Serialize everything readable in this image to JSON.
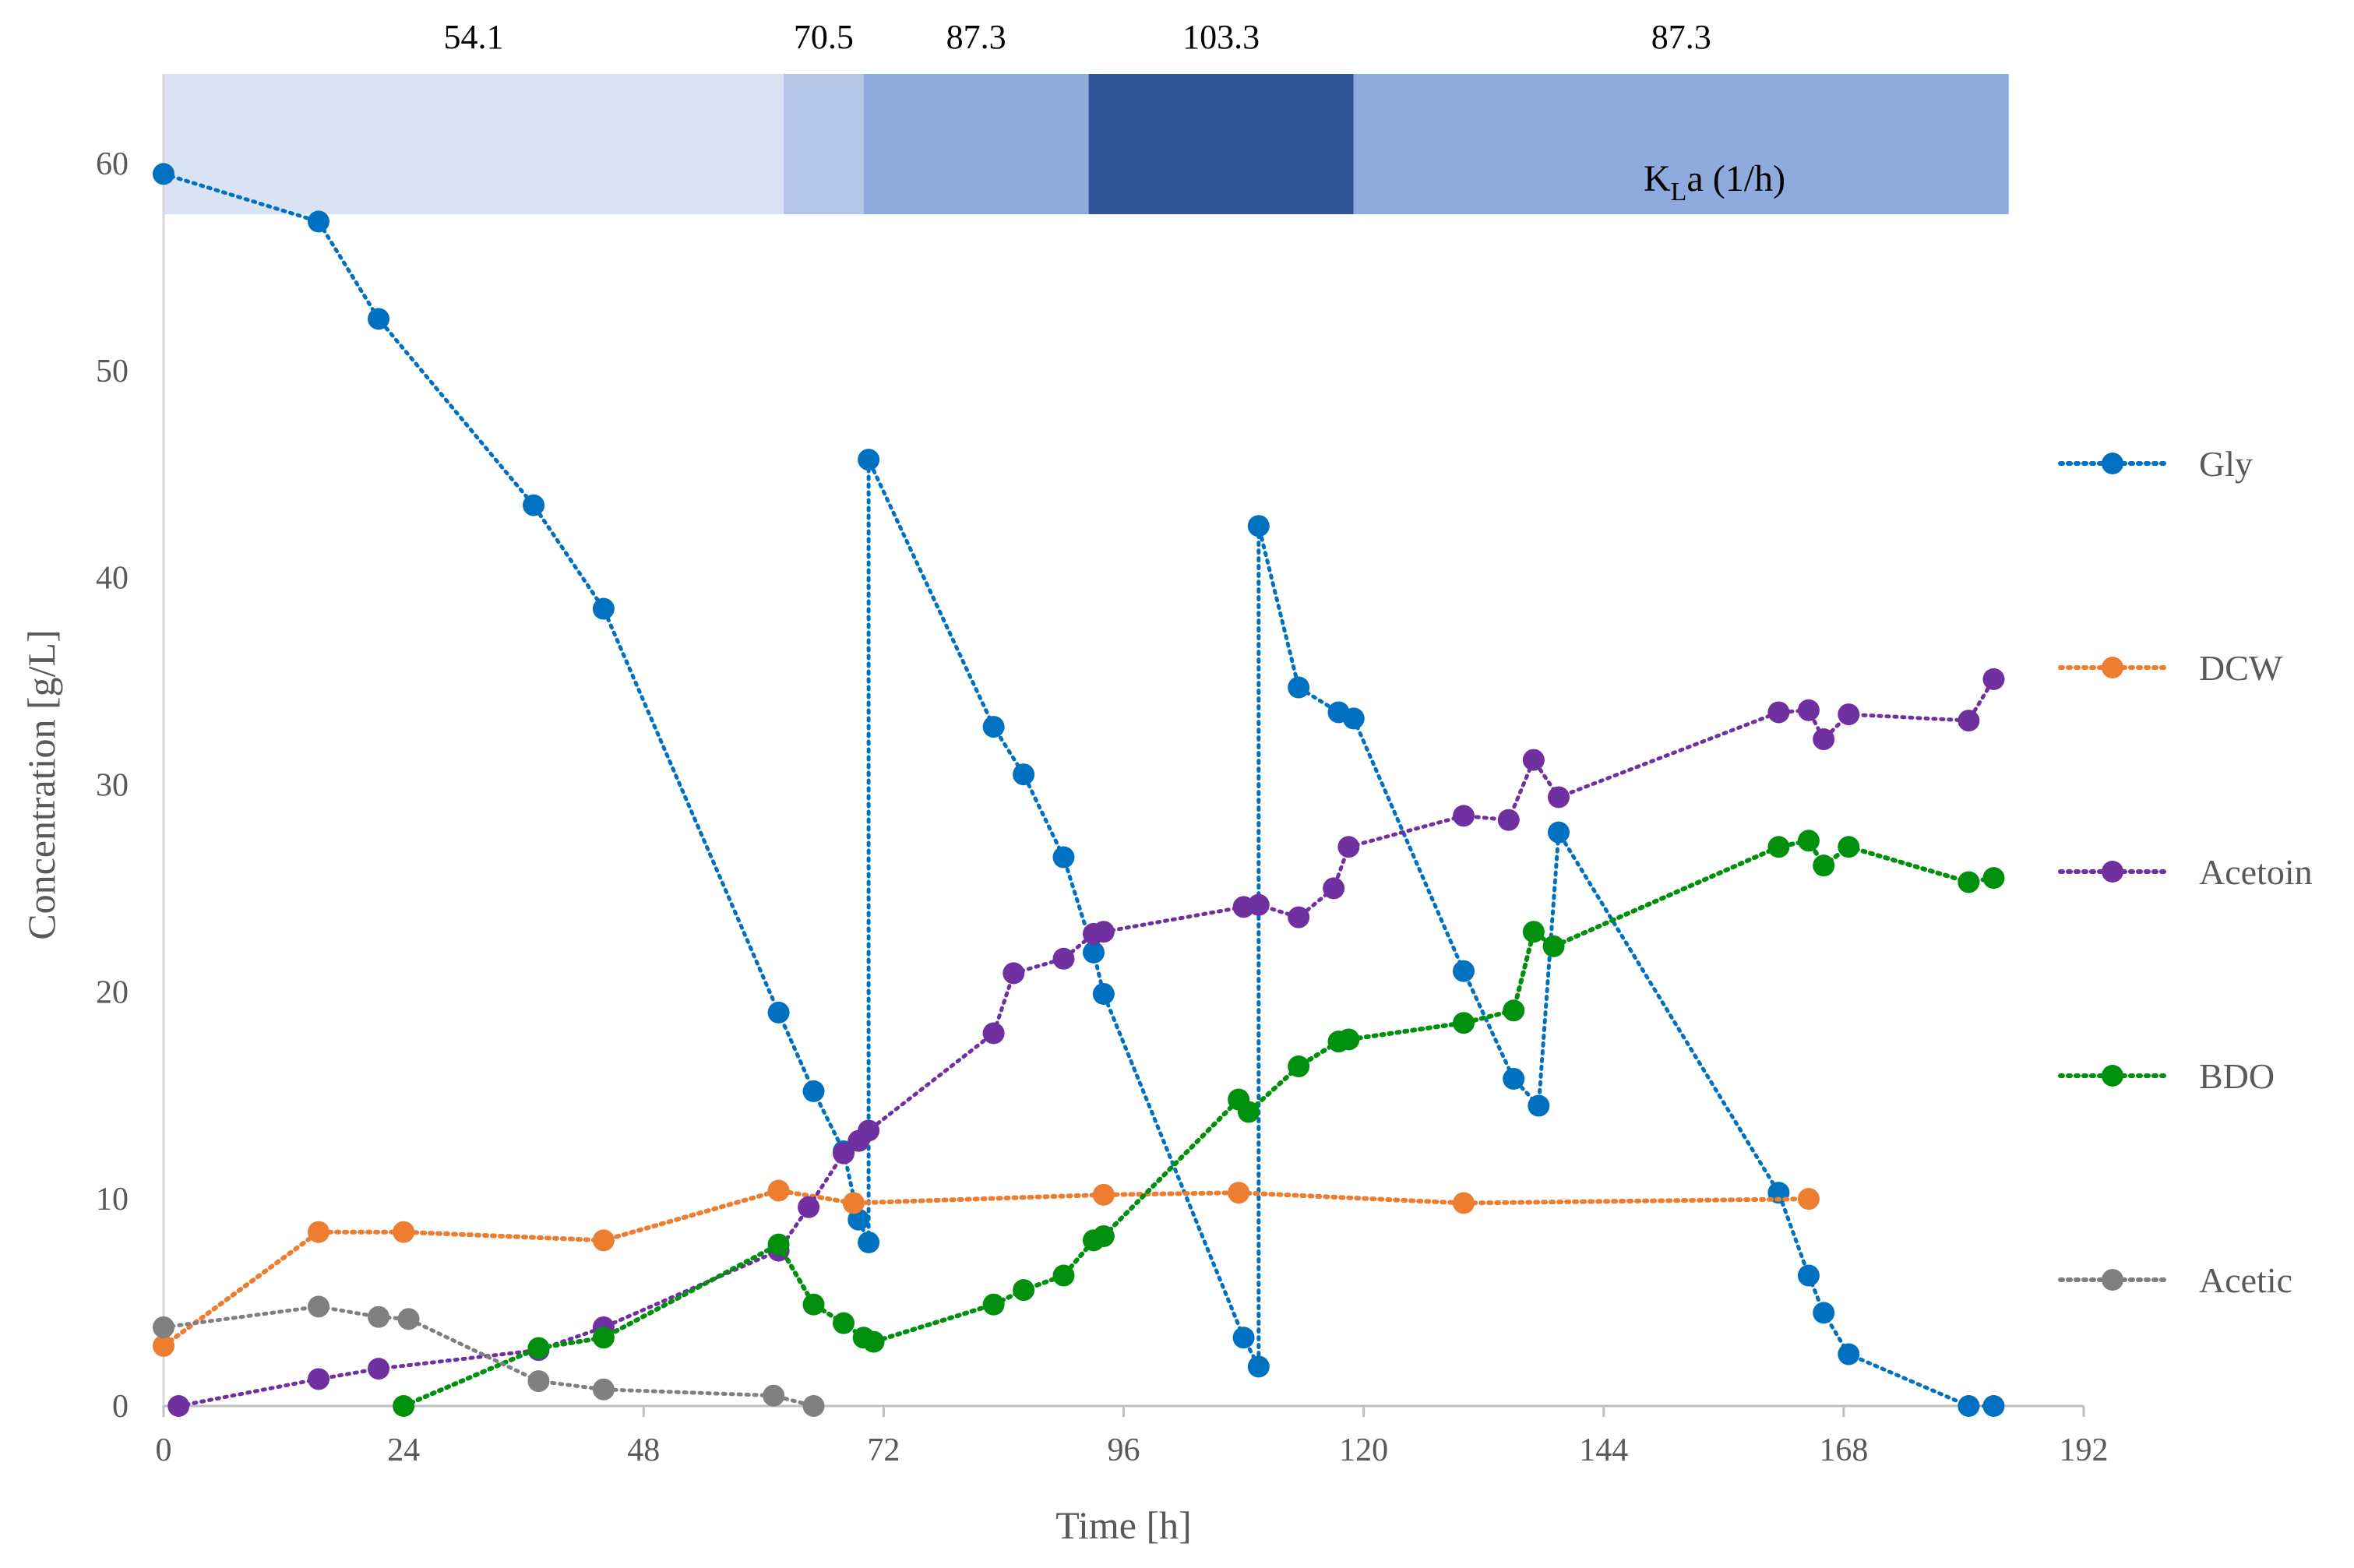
{
  "chart_data": {
    "type": "line",
    "xlabel": "Time [h]",
    "ylabel": "Concentration [g/L]",
    "xlim": [
      0,
      192
    ],
    "ylim": [
      0,
      60
    ],
    "xticks": [
      0,
      24,
      48,
      72,
      96,
      120,
      144,
      168,
      192
    ],
    "yticks": [
      0,
      10,
      20,
      30,
      40,
      50,
      60
    ],
    "grid": false,
    "legend_position": "right",
    "kla_label_prefix": "K",
    "kla_label_sub": "L",
    "kla_label_suffix": "a (1/h)",
    "kla_bands": [
      {
        "start": 0,
        "end": 62,
        "value": "54.1",
        "color": "#dae3f3"
      },
      {
        "start": 62,
        "end": 70,
        "value": "70.5",
        "color": "#b4c7e7"
      },
      {
        "start": 70,
        "end": 92.5,
        "value": "87.3",
        "color": "#8faadc"
      },
      {
        "start": 92.5,
        "end": 119,
        "value": "103.3",
        "color": "#2f5597"
      },
      {
        "start": 119,
        "end": 184.5,
        "value": "87.3",
        "color": "#8faadc"
      }
    ],
    "series": [
      {
        "name": "Gly",
        "color": "#0070c0",
        "x": [
          0,
          15.5,
          21.5,
          37,
          44,
          61.5,
          65,
          68,
          69.5,
          70.5,
          70.5,
          83,
          86,
          90,
          93,
          94,
          108,
          109.5,
          109.5,
          113.5,
          117.5,
          119,
          130,
          135,
          137.5,
          139.5,
          161.5,
          164.5,
          166,
          168.5,
          180.5,
          183
        ],
        "y": [
          59.5,
          57.2,
          52.5,
          43.5,
          38.5,
          19,
          15.2,
          12.3,
          9,
          7.9,
          45.7,
          32.8,
          30.5,
          26.5,
          21.9,
          19.9,
          3.3,
          1.9,
          42.5,
          34.7,
          33.5,
          33.2,
          21,
          15.8,
          14.5,
          27.7,
          10.3,
          6.3,
          4.5,
          2.5,
          0,
          0
        ]
      },
      {
        "name": "DCW",
        "color": "#ed7d31",
        "x": [
          0,
          15.5,
          24,
          44,
          61.5,
          69,
          94,
          107.5,
          130,
          164.5
        ],
        "y": [
          2.9,
          8.4,
          8.4,
          8,
          10.4,
          9.8,
          10.2,
          10.3,
          9.8,
          10
        ]
      },
      {
        "name": "Acetoin",
        "color": "#7030a0",
        "x": [
          1.5,
          15.5,
          21.5,
          37.5,
          44,
          61.5,
          64.5,
          68,
          69.5,
          70.5,
          83,
          85,
          90,
          93,
          94,
          108,
          109.5,
          113.5,
          117,
          118.5,
          130,
          134.5,
          137,
          139.5,
          161.5,
          164.5,
          166,
          168.5,
          180.5,
          183
        ],
        "y": [
          0,
          1.3,
          1.8,
          2.7,
          3.8,
          7.5,
          9.6,
          12.2,
          12.8,
          13.3,
          18,
          20.9,
          21.6,
          22.8,
          22.9,
          24.1,
          24.2,
          23.6,
          25,
          27,
          28.5,
          28.3,
          31.2,
          29.4,
          33.5,
          33.6,
          32.2,
          33.4,
          33.1,
          35.1
        ]
      },
      {
        "name": "BDO",
        "color": "#00900e",
        "x": [
          24,
          37.5,
          44,
          61.5,
          65,
          68,
          70,
          71,
          83,
          86,
          90,
          93,
          94,
          107.5,
          108.5,
          113.5,
          117.5,
          118.5,
          130,
          135,
          137,
          139,
          161.5,
          164.5,
          166,
          168.5,
          180.5,
          183
        ],
        "y": [
          0,
          2.8,
          3.3,
          7.8,
          4.9,
          4,
          3.3,
          3.1,
          4.9,
          5.6,
          6.3,
          8,
          8.2,
          14.8,
          14.2,
          16.4,
          17.6,
          17.7,
          18.5,
          19.1,
          22.9,
          22.2,
          27,
          27.3,
          26.1,
          27,
          25.3,
          25.5
        ]
      },
      {
        "name": "Acetic",
        "color": "#808080",
        "x": [
          0,
          15.5,
          21.5,
          24.5,
          37.5,
          44,
          61,
          65
        ],
        "y": [
          3.8,
          4.8,
          4.3,
          4.2,
          1.2,
          0.8,
          0.5,
          0
        ]
      }
    ]
  }
}
